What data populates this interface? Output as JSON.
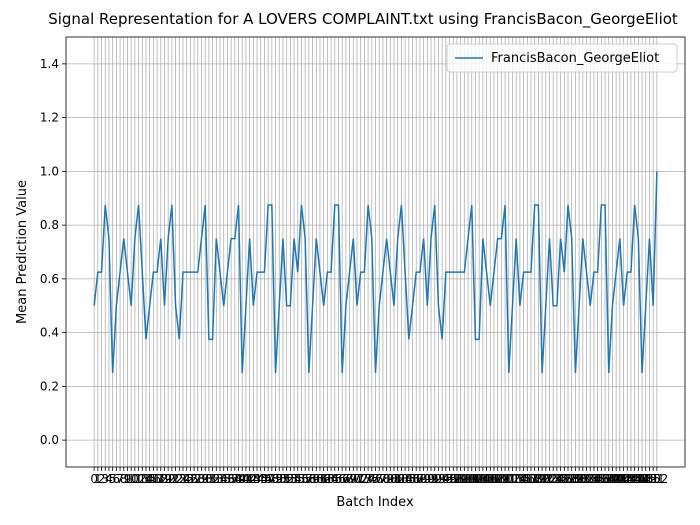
{
  "chart_data": {
    "type": "line",
    "title": "Signal Representation for A LOVERS COMPLAINT.txt using FrancisBacon_GeorgeEliot",
    "xlabel": "Batch Index",
    "ylabel": "Mean Prediction Value",
    "x": [
      0,
      1,
      2,
      3,
      4,
      5,
      6,
      7,
      8,
      9,
      10,
      11,
      12,
      13,
      14,
      15,
      16,
      17,
      18,
      19,
      20,
      21,
      22,
      23,
      24,
      25,
      26,
      27,
      28,
      29,
      30,
      31,
      32,
      33,
      34,
      35,
      36,
      37,
      38,
      39,
      40,
      41,
      42,
      43,
      44,
      45,
      46,
      47,
      48,
      49,
      50,
      51,
      52,
      53,
      54,
      55,
      56,
      57,
      58,
      59,
      60,
      61,
      62,
      63,
      64,
      65,
      66,
      67,
      68,
      69,
      70,
      71,
      72,
      73,
      74,
      75,
      76,
      77,
      78,
      79,
      80,
      81,
      82,
      83,
      84,
      85,
      86,
      87,
      88,
      89,
      90,
      91,
      92,
      93,
      94,
      95,
      96,
      97,
      98,
      99,
      100,
      101,
      102,
      103,
      104,
      105,
      106,
      107,
      108,
      109,
      110,
      111,
      112,
      113,
      114,
      115,
      116,
      117,
      118,
      119,
      120,
      121,
      122,
      123,
      124,
      125,
      126,
      127,
      128,
      129,
      130,
      131,
      132,
      133,
      134,
      135,
      136,
      137,
      138,
      139,
      140,
      141,
      142,
      143,
      144,
      145,
      146,
      147,
      148,
      149,
      150,
      151,
      152
    ],
    "series": [
      {
        "name": "FrancisBacon_GeorgeEliot",
        "color": "#1f77b4",
        "values": [
          0.5,
          0.625,
          0.625,
          0.875,
          0.75,
          0.25,
          0.5,
          0.625,
          0.75,
          0.625,
          0.5,
          0.75,
          0.875,
          0.625,
          0.375,
          0.5,
          0.625,
          0.625,
          0.75,
          0.5,
          0.75,
          0.875,
          0.5,
          0.375,
          0.625,
          0.625,
          0.625,
          0.625,
          0.625,
          0.75,
          0.875,
          0.375,
          0.375,
          0.75,
          0.625,
          0.5,
          0.625,
          0.75,
          0.75,
          0.875,
          0.25,
          0.5,
          0.75,
          0.5,
          0.625,
          0.625,
          0.625,
          0.875,
          0.875,
          0.25,
          0.5,
          0.75,
          0.5,
          0.5,
          0.75,
          0.625,
          0.875,
          0.75,
          0.25,
          0.5,
          0.75,
          0.625,
          0.5,
          0.625,
          0.625,
          0.875,
          0.875,
          0.25,
          0.5,
          0.625,
          0.75,
          0.5,
          0.625,
          0.625,
          0.875,
          0.75,
          0.25,
          0.5,
          0.625,
          0.75,
          0.625,
          0.5,
          0.75,
          0.875,
          0.625,
          0.375,
          0.5,
          0.625,
          0.625,
          0.75,
          0.5,
          0.75,
          0.875,
          0.5,
          0.375,
          0.625,
          0.625,
          0.625,
          0.625,
          0.625,
          0.625,
          0.75,
          0.875,
          0.375,
          0.375,
          0.75,
          0.625,
          0.5,
          0.625,
          0.75,
          0.75,
          0.875,
          0.25,
          0.5,
          0.75,
          0.5,
          0.625,
          0.625,
          0.625,
          0.875,
          0.875,
          0.25,
          0.5,
          0.75,
          0.5,
          0.5,
          0.75,
          0.625,
          0.875,
          0.75,
          0.25,
          0.5,
          0.75,
          0.625,
          0.5,
          0.625,
          0.625,
          0.875,
          0.875,
          0.25,
          0.5,
          0.625,
          0.75,
          0.5,
          0.625,
          0.625,
          0.875,
          0.75,
          0.25,
          0.5,
          0.75,
          0.5,
          1.0
        ]
      }
    ],
    "xlim": [
      -7.6,
      159.6
    ],
    "ylim": [
      -0.1,
      1.5
    ],
    "xticks": [
      0,
      1,
      2,
      3,
      4,
      5,
      6,
      7,
      8,
      9,
      10,
      11,
      12,
      13,
      14,
      15,
      16,
      17,
      18,
      19,
      20,
      21,
      22,
      23,
      24,
      25,
      26,
      27,
      28,
      29,
      30,
      31,
      32,
      33,
      34,
      35,
      36,
      37,
      38,
      39,
      40,
      41,
      42,
      43,
      44,
      45,
      46,
      47,
      48,
      49,
      50,
      51,
      52,
      53,
      54,
      55,
      56,
      57,
      58,
      59,
      60,
      61,
      62,
      63,
      64,
      65,
      66,
      67,
      68,
      69,
      70,
      71,
      72,
      73,
      74,
      75,
      76,
      77,
      78,
      79,
      80,
      81,
      82,
      83,
      84,
      85,
      86,
      87,
      88,
      89,
      90,
      91,
      92,
      93,
      94,
      95,
      96,
      97,
      98,
      99,
      100,
      101,
      102,
      103,
      104,
      105,
      106,
      107,
      108,
      109,
      110,
      111,
      112,
      113,
      114,
      115,
      116,
      117,
      118,
      119,
      120,
      121,
      122,
      123,
      124,
      125,
      126,
      127,
      128,
      129,
      130,
      131,
      132,
      133,
      134,
      135,
      136,
      137,
      138,
      139,
      140,
      141,
      142,
      143,
      144,
      145,
      146,
      147,
      148,
      149,
      150,
      151,
      152
    ],
    "yticks": [
      {
        "value": 0,
        "label": "0.0"
      },
      {
        "value": 0.2,
        "label": "0.2"
      },
      {
        "value": 0.4,
        "label": "0.4"
      },
      {
        "value": 0.6,
        "label": "0.6"
      },
      {
        "value": 0.8,
        "label": "0.8"
      },
      {
        "value": 1,
        "label": "1.0"
      },
      {
        "value": 1.2,
        "label": "1.2"
      },
      {
        "value": 1.4,
        "label": "1.4"
      }
    ],
    "grid": true,
    "legend": "upper right"
  }
}
